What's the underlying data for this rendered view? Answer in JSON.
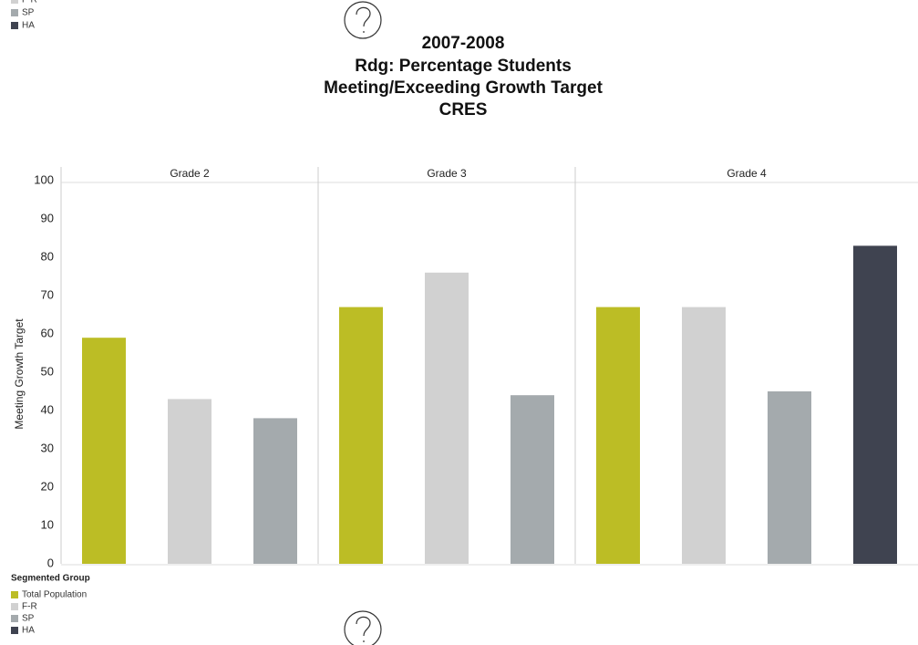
{
  "chart_data": {
    "type": "bar",
    "title": [
      "2007-2008",
      "Rdg: Percentage Students",
      "Meeting/Exceeding Growth Target",
      "CRES"
    ],
    "categories": [
      "Grade 2",
      "Grade 3",
      "Grade 4"
    ],
    "series": [
      {
        "name": "Total Population",
        "color": "#bcbd25",
        "values": [
          59,
          67,
          67
        ]
      },
      {
        "name": "F-R",
        "color": "#d1d1d1",
        "values": [
          43,
          76,
          67
        ]
      },
      {
        "name": "SP",
        "color": "#a4aaad",
        "values": [
          38,
          44,
          45
        ]
      },
      {
        "name": "HA",
        "color": "#3f4350",
        "values": [
          null,
          null,
          83
        ]
      }
    ],
    "ylabel": "Meeting Growth Target",
    "legend_title": "Segmented Group",
    "ylim": [
      0,
      100
    ],
    "yticks": [
      0,
      10,
      20,
      30,
      40,
      50,
      60,
      70,
      80,
      90,
      100
    ]
  }
}
